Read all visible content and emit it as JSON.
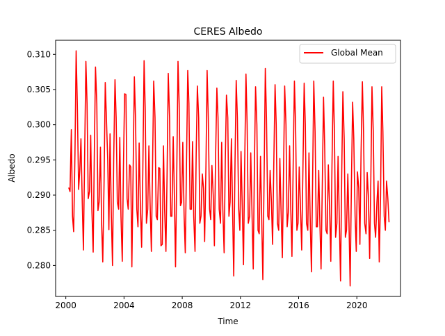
{
  "chart_data": {
    "type": "line",
    "title": "CERES Albedo",
    "xlabel": "Time",
    "ylabel": "Albedo",
    "xlim": [
      1999.3,
      2023.0
    ],
    "ylim": [
      0.2756,
      0.312
    ],
    "xticks": [
      2000,
      2004,
      2008,
      2012,
      2016,
      2020
    ],
    "yticks": [
      0.28,
      0.285,
      0.29,
      0.295,
      0.3,
      0.305,
      0.31
    ],
    "grid": false,
    "legend_position": "top-right",
    "series": [
      {
        "name": "Global Mean",
        "color": "#ff0000",
        "x": [
          2000.21,
          2000.29,
          2000.38,
          2000.46,
          2000.54,
          2000.63,
          2000.71,
          2000.79,
          2000.88,
          2000.96,
          2001.04,
          2001.13,
          2001.21,
          2001.29,
          2001.38,
          2001.46,
          2001.54,
          2001.63,
          2001.71,
          2001.79,
          2001.88,
          2001.96,
          2002.04,
          2002.13,
          2002.21,
          2002.29,
          2002.38,
          2002.46,
          2002.54,
          2002.63,
          2002.71,
          2002.79,
          2002.88,
          2002.96,
          2003.04,
          2003.13,
          2003.21,
          2003.29,
          2003.38,
          2003.46,
          2003.54,
          2003.63,
          2003.71,
          2003.79,
          2003.88,
          2003.96,
          2004.04,
          2004.13,
          2004.21,
          2004.29,
          2004.38,
          2004.46,
          2004.54,
          2004.63,
          2004.71,
          2004.79,
          2004.88,
          2004.96,
          2005.04,
          2005.13,
          2005.21,
          2005.29,
          2005.38,
          2005.46,
          2005.54,
          2005.63,
          2005.71,
          2005.79,
          2005.88,
          2005.96,
          2006.04,
          2006.13,
          2006.21,
          2006.29,
          2006.38,
          2006.46,
          2006.54,
          2006.63,
          2006.71,
          2006.79,
          2006.88,
          2006.96,
          2007.04,
          2007.13,
          2007.21,
          2007.29,
          2007.38,
          2007.46,
          2007.54,
          2007.63,
          2007.71,
          2007.79,
          2007.88,
          2007.96,
          2008.04,
          2008.13,
          2008.21,
          2008.29,
          2008.38,
          2008.46,
          2008.54,
          2008.63,
          2008.71,
          2008.79,
          2008.88,
          2008.96,
          2009.04,
          2009.13,
          2009.21,
          2009.29,
          2009.38,
          2009.46,
          2009.54,
          2009.63,
          2009.71,
          2009.79,
          2009.88,
          2009.96,
          2010.04,
          2010.13,
          2010.21,
          2010.29,
          2010.38,
          2010.46,
          2010.54,
          2010.63,
          2010.71,
          2010.79,
          2010.88,
          2010.96,
          2011.04,
          2011.13,
          2011.21,
          2011.29,
          2011.38,
          2011.46,
          2011.54,
          2011.63,
          2011.71,
          2011.79,
          2011.88,
          2011.96,
          2012.04,
          2012.13,
          2012.21,
          2012.29,
          2012.38,
          2012.46,
          2012.54,
          2012.63,
          2012.71,
          2012.79,
          2012.88,
          2012.96,
          2013.04,
          2013.13,
          2013.21,
          2013.29,
          2013.38,
          2013.46,
          2013.54,
          2013.63,
          2013.71,
          2013.79,
          2013.88,
          2013.96,
          2014.04,
          2014.13,
          2014.21,
          2014.29,
          2014.38,
          2014.46,
          2014.54,
          2014.63,
          2014.71,
          2014.79,
          2014.88,
          2014.96,
          2015.04,
          2015.13,
          2015.21,
          2015.29,
          2015.38,
          2015.46,
          2015.54,
          2015.63,
          2015.71,
          2015.79,
          2015.88,
          2015.96,
          2016.04,
          2016.13,
          2016.21,
          2016.29,
          2016.38,
          2016.46,
          2016.54,
          2016.63,
          2016.71,
          2016.79,
          2016.88,
          2016.96,
          2017.04,
          2017.13,
          2017.21,
          2017.29,
          2017.38,
          2017.46,
          2017.54,
          2017.63,
          2017.71,
          2017.79,
          2017.88,
          2017.96,
          2018.04,
          2018.13,
          2018.21,
          2018.29,
          2018.38,
          2018.46,
          2018.54,
          2018.63,
          2018.71,
          2018.79,
          2018.88,
          2018.96,
          2019.04,
          2019.13,
          2019.21,
          2019.29,
          2019.38,
          2019.46,
          2019.54,
          2019.63,
          2019.71,
          2019.79,
          2019.88,
          2019.96,
          2020.04,
          2020.13,
          2020.21,
          2020.29,
          2020.38,
          2020.46,
          2020.54,
          2020.63,
          2020.71,
          2020.79,
          2020.88,
          2020.96,
          2021.04,
          2021.13,
          2021.21,
          2021.29,
          2021.38,
          2021.46,
          2021.54,
          2021.63,
          2021.71,
          2021.79,
          2021.88,
          2021.96,
          2022.04,
          2022.13,
          2022.21
        ],
        "y": [
          0.291,
          0.2905,
          0.2993,
          0.287,
          0.2848,
          0.296,
          0.3105,
          0.303,
          0.2908,
          0.2935,
          0.298,
          0.289,
          0.2822,
          0.295,
          0.309,
          0.303,
          0.2895,
          0.2905,
          0.2985,
          0.288,
          0.2819,
          0.296,
          0.3082,
          0.303,
          0.2878,
          0.289,
          0.2968,
          0.286,
          0.2805,
          0.292,
          0.306,
          0.301,
          0.295,
          0.2851,
          0.2987,
          0.287,
          0.28,
          0.295,
          0.3064,
          0.301,
          0.289,
          0.288,
          0.2982,
          0.287,
          0.2806,
          0.294,
          0.3044,
          0.3043,
          0.2895,
          0.288,
          0.2943,
          0.294,
          0.2798,
          0.294,
          0.3068,
          0.301,
          0.288,
          0.2855,
          0.2974,
          0.288,
          0.2826,
          0.293,
          0.3091,
          0.302,
          0.286,
          0.288,
          0.297,
          0.289,
          0.282,
          0.294,
          0.3062,
          0.301,
          0.287,
          0.2865,
          0.2939,
          0.2938,
          0.2828,
          0.283,
          0.297,
          0.288,
          0.282,
          0.293,
          0.3073,
          0.301,
          0.287,
          0.287,
          0.2983,
          0.29,
          0.2798,
          0.294,
          0.309,
          0.303,
          0.2885,
          0.289,
          0.2975,
          0.287,
          0.2818,
          0.294,
          0.3077,
          0.303,
          0.288,
          0.288,
          0.2976,
          0.287,
          0.282,
          0.296,
          0.3055,
          0.301,
          0.286,
          0.287,
          0.293,
          0.291,
          0.2834,
          0.294,
          0.3077,
          0.301,
          0.288,
          0.2865,
          0.2942,
          0.29,
          0.2828,
          0.295,
          0.3052,
          0.301,
          0.288,
          0.286,
          0.2975,
          0.288,
          0.2818,
          0.295,
          0.3042,
          0.301,
          0.287,
          0.289,
          0.298,
          0.288,
          0.2785,
          0.295,
          0.3063,
          0.301,
          0.288,
          0.285,
          0.2962,
          0.288,
          0.2801,
          0.294,
          0.3072,
          0.3,
          0.286,
          0.287,
          0.296,
          0.288,
          0.2795,
          0.294,
          0.3054,
          0.3,
          0.285,
          0.2845,
          0.2955,
          0.287,
          0.278,
          0.293,
          0.308,
          0.301,
          0.287,
          0.2865,
          0.2935,
          0.289,
          0.283,
          0.294,
          0.3057,
          0.3,
          0.286,
          0.285,
          0.2952,
          0.288,
          0.2811,
          0.293,
          0.3055,
          0.3,
          0.2855,
          0.2875,
          0.297,
          0.288,
          0.2813,
          0.295,
          0.3062,
          0.3,
          0.285,
          0.286,
          0.294,
          0.288,
          0.2822,
          0.293,
          0.3059,
          0.3,
          0.286,
          0.285,
          0.296,
          0.287,
          0.2791,
          0.292,
          0.3062,
          0.299,
          0.2855,
          0.2855,
          0.2935,
          0.286,
          0.2795,
          0.292,
          0.3039,
          0.297,
          0.285,
          0.2845,
          0.2943,
          0.288,
          0.2806,
          0.294,
          0.3062,
          0.299,
          0.284,
          0.286,
          0.2955,
          0.287,
          0.2778,
          0.293,
          0.3047,
          0.298,
          0.284,
          0.285,
          0.293,
          0.286,
          0.2771,
          0.292,
          0.3032,
          0.298,
          0.287,
          0.282,
          0.2933,
          0.291,
          0.283,
          0.296,
          0.3061,
          0.299,
          0.286,
          0.2845,
          0.2932,
          0.29,
          0.281,
          0.292,
          0.3054,
          0.299,
          0.286,
          0.284,
          0.289,
          0.292,
          0.2805,
          0.29,
          0.3054,
          0.299,
          0.287,
          0.285,
          0.292,
          0.2895,
          0.2862
        ]
      }
    ]
  }
}
